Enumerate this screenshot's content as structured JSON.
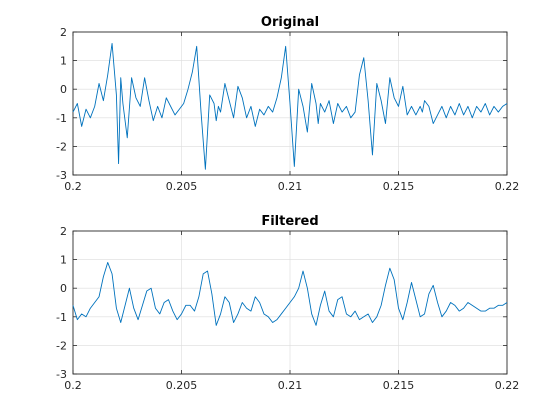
{
  "colors": {
    "line": "#0072BD",
    "axis": "#262626",
    "grid": "#dcdcdc"
  },
  "chart_data": [
    {
      "type": "line",
      "title": "Original",
      "xlabel": "",
      "ylabel": "",
      "xlim": [
        0.2,
        0.22
      ],
      "ylim": [
        -3,
        2
      ],
      "xticks": [
        "0.2",
        "0.205",
        "0.21",
        "0.215",
        "0.22"
      ],
      "yticks": [
        "-3",
        "-2",
        "-1",
        "0",
        "1",
        "2"
      ],
      "grid": true,
      "series": [
        {
          "x": [
            0.2,
            0.2002,
            0.2004,
            0.2006,
            0.2008,
            0.201,
            0.2012,
            0.2014,
            0.2016,
            0.2018,
            0.202,
            0.2021,
            0.2022,
            0.2023,
            0.2025,
            0.2027,
            0.2029,
            0.2031,
            0.2033,
            0.2035,
            0.2037,
            0.2039,
            0.2041,
            0.2043,
            0.2045,
            0.2047,
            0.2049,
            0.2051,
            0.2053,
            0.2055,
            0.2057,
            0.2059,
            0.2061,
            0.2063,
            0.2065,
            0.2066,
            0.2067,
            0.2068,
            0.207,
            0.2072,
            0.2074,
            0.2076,
            0.2078,
            0.208,
            0.2082,
            0.2084,
            0.2086,
            0.2088,
            0.209,
            0.2092,
            0.2094,
            0.2096,
            0.2098,
            0.21,
            0.2102,
            0.2104,
            0.2106,
            0.2108,
            0.211,
            0.2112,
            0.2113,
            0.2114,
            0.2116,
            0.2118,
            0.212,
            0.2122,
            0.2124,
            0.2126,
            0.2128,
            0.213,
            0.2132,
            0.2134,
            0.2136,
            0.2138,
            0.214,
            0.2142,
            0.2144,
            0.2146,
            0.2148,
            0.215,
            0.2152,
            0.2154,
            0.2156,
            0.2158,
            0.216,
            0.2161,
            0.2162,
            0.2164,
            0.2166,
            0.2168,
            0.217,
            0.2172,
            0.2174,
            0.2176,
            0.2178,
            0.218,
            0.2182,
            0.2184,
            0.2186,
            0.2188,
            0.219,
            0.2192,
            0.2194,
            0.2196,
            0.2198,
            0.22
          ],
          "values": [
            -0.8,
            -0.5,
            -1.3,
            -0.7,
            -1.0,
            -0.6,
            0.2,
            -0.4,
            0.5,
            1.6,
            -0.2,
            -2.6,
            0.4,
            -0.5,
            -1.7,
            0.4,
            -0.3,
            -0.6,
            0.4,
            -0.4,
            -1.1,
            -0.6,
            -1.0,
            -0.3,
            -0.6,
            -0.9,
            -0.7,
            -0.5,
            0.0,
            0.6,
            1.5,
            -0.8,
            -2.8,
            -0.2,
            -0.5,
            -1.1,
            -0.6,
            -0.8,
            0.2,
            -0.4,
            -1.0,
            0.1,
            -0.3,
            -1.0,
            -0.6,
            -1.3,
            -0.7,
            -0.9,
            -0.6,
            -0.8,
            -0.3,
            0.4,
            1.5,
            -0.5,
            -2.7,
            0.0,
            -0.6,
            -1.5,
            0.2,
            -0.5,
            -1.2,
            -0.5,
            -0.8,
            -0.4,
            -1.2,
            -0.5,
            -0.8,
            -0.6,
            -1.0,
            -0.8,
            0.5,
            1.1,
            -0.4,
            -2.3,
            0.2,
            -0.4,
            -1.2,
            0.4,
            -0.3,
            -0.6,
            0.1,
            -0.9,
            -0.6,
            -0.9,
            -0.6,
            -0.8,
            -0.4,
            -0.6,
            -1.2,
            -0.9,
            -0.6,
            -1.0,
            -0.6,
            -0.9,
            -0.5,
            -0.9,
            -0.6,
            -1.0,
            -0.6,
            -0.8,
            -0.5,
            -0.9,
            -0.6,
            -0.8,
            -0.6,
            -0.5
          ]
        }
      ]
    },
    {
      "type": "line",
      "title": "Filtered",
      "xlabel": "",
      "ylabel": "",
      "xlim": [
        0.2,
        0.22
      ],
      "ylim": [
        -3,
        2
      ],
      "xticks": [
        "0.2",
        "0.205",
        "0.21",
        "0.215",
        "0.22"
      ],
      "yticks": [
        "-3",
        "-2",
        "-1",
        "0",
        "1",
        "2"
      ],
      "grid": true,
      "series": [
        {
          "x": [
            0.2,
            0.2002,
            0.2004,
            0.2006,
            0.2008,
            0.201,
            0.2012,
            0.2014,
            0.2016,
            0.2018,
            0.202,
            0.2022,
            0.2024,
            0.2026,
            0.2028,
            0.203,
            0.2032,
            0.2034,
            0.2036,
            0.2038,
            0.204,
            0.2042,
            0.2044,
            0.2046,
            0.2048,
            0.205,
            0.2052,
            0.2054,
            0.2056,
            0.2058,
            0.206,
            0.2062,
            0.2064,
            0.2066,
            0.2068,
            0.207,
            0.2072,
            0.2074,
            0.2076,
            0.2078,
            0.208,
            0.2082,
            0.2084,
            0.2086,
            0.2088,
            0.209,
            0.2092,
            0.2094,
            0.2096,
            0.2098,
            0.21,
            0.2102,
            0.2104,
            0.2106,
            0.2108,
            0.211,
            0.2112,
            0.2114,
            0.2116,
            0.2118,
            0.212,
            0.2122,
            0.2124,
            0.2126,
            0.2128,
            0.213,
            0.2132,
            0.2134,
            0.2136,
            0.2138,
            0.214,
            0.2142,
            0.2144,
            0.2146,
            0.2148,
            0.215,
            0.2152,
            0.2154,
            0.2156,
            0.2158,
            0.216,
            0.2162,
            0.2164,
            0.2166,
            0.2168,
            0.217,
            0.2172,
            0.2174,
            0.2176,
            0.2178,
            0.218,
            0.2182,
            0.2184,
            0.2186,
            0.2188,
            0.219,
            0.2192,
            0.2194,
            0.2196,
            0.2198,
            0.22
          ],
          "values": [
            -0.6,
            -1.1,
            -0.9,
            -1.0,
            -0.7,
            -0.5,
            -0.3,
            0.4,
            0.9,
            0.5,
            -0.7,
            -1.2,
            -0.6,
            0.0,
            -0.7,
            -1.1,
            -0.6,
            -0.1,
            0.0,
            -0.7,
            -0.9,
            -0.5,
            -0.4,
            -0.8,
            -1.1,
            -0.9,
            -0.6,
            -0.6,
            -0.8,
            -0.3,
            0.5,
            0.6,
            -0.2,
            -1.3,
            -0.9,
            -0.3,
            -0.5,
            -1.2,
            -0.9,
            -0.5,
            -0.7,
            -0.8,
            -0.3,
            -0.5,
            -0.9,
            -1.0,
            -1.2,
            -1.1,
            -0.9,
            -0.7,
            -0.5,
            -0.3,
            0.0,
            0.6,
            0.0,
            -0.9,
            -1.3,
            -0.6,
            -0.1,
            -0.8,
            -1.0,
            -0.4,
            -0.3,
            -0.9,
            -1.0,
            -0.8,
            -1.1,
            -1.0,
            -0.9,
            -1.2,
            -1.0,
            -0.6,
            0.1,
            0.7,
            0.3,
            -0.7,
            -1.1,
            -0.5,
            0.2,
            -0.4,
            -1.0,
            -0.9,
            -0.2,
            0.1,
            -0.5,
            -1.0,
            -0.8,
            -0.5,
            -0.6,
            -0.8,
            -0.7,
            -0.5,
            -0.6,
            -0.7,
            -0.8,
            -0.8,
            -0.7,
            -0.7,
            -0.6,
            -0.6,
            -0.5
          ]
        }
      ]
    }
  ]
}
